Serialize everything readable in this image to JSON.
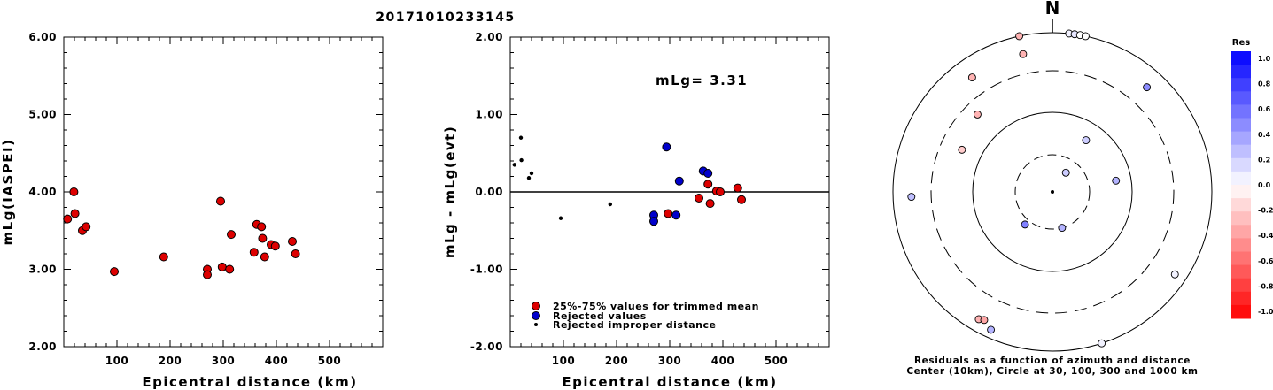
{
  "title": "20171010233145",
  "chart_data": [
    {
      "type": "scatter",
      "ylabel": "mLg(IASPEI)",
      "xlabel": "Epicentral distance (km)",
      "xlim": [
        0,
        600
      ],
      "ylim": [
        2.0,
        6.0
      ],
      "x_ticks": [
        100,
        200,
        300,
        400,
        500
      ],
      "y_ticks": [
        "2.00",
        "3.00",
        "4.00",
        "5.00",
        "6.00"
      ],
      "color": "#dd0000",
      "points": [
        [
          7,
          3.65
        ],
        [
          19,
          4.0
        ],
        [
          21,
          3.72
        ],
        [
          35,
          3.5
        ],
        [
          42,
          3.55
        ],
        [
          95,
          2.97
        ],
        [
          188,
          3.16
        ],
        [
          270,
          3.0
        ],
        [
          270,
          2.93
        ],
        [
          295,
          3.88
        ],
        [
          298,
          3.03
        ],
        [
          312,
          3.0
        ],
        [
          315,
          3.45
        ],
        [
          358,
          3.22
        ],
        [
          363,
          3.58
        ],
        [
          372,
          3.55
        ],
        [
          374,
          3.4
        ],
        [
          378,
          3.16
        ],
        [
          390,
          3.32
        ],
        [
          398,
          3.3
        ],
        [
          430,
          3.36
        ],
        [
          436,
          3.2
        ]
      ]
    },
    {
      "type": "scatter",
      "ylabel": "mLg - mLg(evt)",
      "xlabel": "Epicentral distance (km)",
      "xlim": [
        0,
        600
      ],
      "ylim": [
        -2.0,
        2.0
      ],
      "x_ticks": [
        100,
        200,
        300,
        400,
        500
      ],
      "y_ticks": [
        "-2.00",
        "-1.00",
        "0.00",
        "1.00",
        "2.00"
      ],
      "annotation": "mLg= 3.31",
      "series": [
        {
          "name": "25%-75% values for trimmed mean",
          "color": "#dd0000",
          "points": [
            [
              297,
              -0.28
            ],
            [
              355,
              -0.08
            ],
            [
              372,
              0.1
            ],
            [
              376,
              -0.15
            ],
            [
              388,
              0.01
            ],
            [
              395,
              0.0
            ],
            [
              428,
              0.05
            ],
            [
              435,
              -0.1
            ]
          ]
        },
        {
          "name": "Rejected values",
          "color": "#0000cc",
          "points": [
            [
              270,
              -0.3
            ],
            [
              270,
              -0.38
            ],
            [
              294,
              0.58
            ],
            [
              312,
              -0.3
            ],
            [
              318,
              0.14
            ],
            [
              363,
              0.27
            ],
            [
              372,
              0.24
            ]
          ]
        },
        {
          "name": "Rejected improper distance",
          "color": "#000000",
          "points": [
            [
              8,
              0.35
            ],
            [
              20,
              0.7
            ],
            [
              21,
              0.41
            ],
            [
              35,
              0.18
            ],
            [
              40,
              0.24
            ],
            [
              95,
              -0.34
            ],
            [
              188,
              -0.16
            ]
          ]
        }
      ]
    },
    {
      "type": "scatter",
      "subtype": "polar",
      "north_label": "N",
      "caption_line1": "Residuals as a function of azimuth and distance",
      "caption_line2": "Center (10km), Circle at 30, 100, 300 and 1000 km",
      "colorbar_title": "Res",
      "colorbar_ticks": [
        "1.0",
        "0.8",
        "0.6",
        "0.4",
        "0.2",
        "0.0",
        "-0.2",
        "-0.4",
        "-0.6",
        "-0.8",
        "-1.0"
      ],
      "points": [
        {
          "azimuth": 6,
          "distance": 1000,
          "residual": 0.05
        },
        {
          "azimuth": 8,
          "distance": 1000,
          "residual": 0.1
        },
        {
          "azimuth": 10,
          "distance": 1000,
          "residual": 0.0
        },
        {
          "azimuth": 12,
          "distance": 1000,
          "residual": 0.0
        },
        {
          "azimuth": 348,
          "distance": 1000,
          "residual": -0.3
        },
        {
          "azimuth": 348,
          "distance": 560,
          "residual": -0.3
        },
        {
          "azimuth": 325,
          "distance": 540,
          "residual": -0.3
        },
        {
          "azimuth": 42,
          "distance": 560,
          "residual": 0.45
        },
        {
          "azimuth": 316,
          "distance": 210,
          "residual": -0.3
        },
        {
          "azimuth": 33,
          "distance": 60,
          "residual": 0.2
        },
        {
          "azimuth": 295,
          "distance": 170,
          "residual": -0.2
        },
        {
          "azimuth": 80,
          "distance": 65,
          "residual": 0.3
        },
        {
          "azimuth": 35,
          "distance": 20,
          "residual": 0.2
        },
        {
          "azimuth": 268,
          "distance": 560,
          "residual": 0.25
        },
        {
          "azimuth": 220,
          "distance": 35,
          "residual": 0.5
        },
        {
          "azimuth": 165,
          "distance": 30,
          "residual": 0.3
        },
        {
          "azimuth": 124,
          "distance": 690,
          "residual": 0.05
        },
        {
          "azimuth": 210,
          "distance": 680,
          "residual": -0.3
        },
        {
          "azimuth": 208,
          "distance": 640,
          "residual": -0.35
        },
        {
          "azimuth": 204,
          "distance": 770,
          "residual": 0.3
        },
        {
          "azimuth": 162,
          "distance": 1000,
          "residual": 0.05
        }
      ]
    }
  ]
}
